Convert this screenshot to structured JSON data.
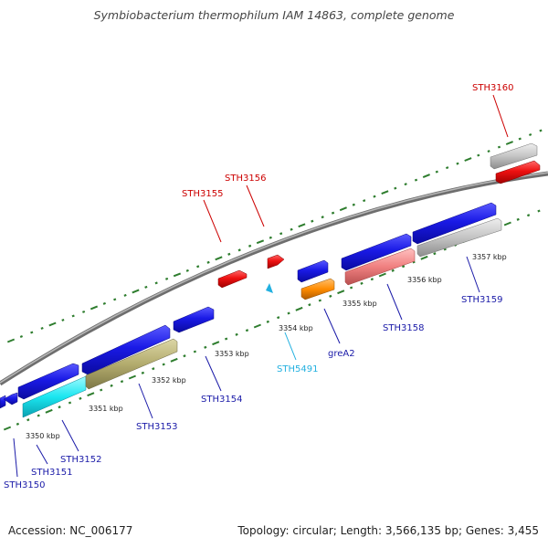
{
  "title": "Symbiobacterium thermophilum IAM 14863, complete genome",
  "footer": {
    "accession": "Accession: NC_006177",
    "summary": "Topology: circular; Length: 3,566,135 bp; Genes: 3,455"
  },
  "colors": {
    "backbone": "#8a8a8a",
    "tick_plus": "#2e7d2e",
    "tick_minus": "#2e7d2e",
    "gene_blue": "#1a1ae6",
    "gene_red": "#ee1111",
    "gene_gray": "#c4c4c4",
    "gene_salmon": "#f08080",
    "gene_cyan": "#1ae6f0",
    "gene_olive": "#b3ac6e",
    "gene_orange": "#ff8c00",
    "label_red": "#cc0000",
    "label_blue": "#1a1aa8",
    "label_cyan": "#22b0e0"
  },
  "scale_labels": [
    "3350 kbp",
    "3351 kbp",
    "3352 kbp",
    "3353 kbp",
    "3354 kbp",
    "3355 kbp",
    "3356 kbp",
    "3357 kbp"
  ],
  "genes": [
    {
      "id": "STH3150",
      "color": "gene_blue",
      "label_color": "label_blue"
    },
    {
      "id": "STH3151",
      "color": "gene_blue",
      "label_color": "label_blue"
    },
    {
      "id": "STH3152",
      "color": "gene_cyan",
      "label_color": "label_blue"
    },
    {
      "id": "STH3153",
      "color": "gene_olive",
      "label_color": "label_blue"
    },
    {
      "id": "STH3154",
      "color": "gene_blue",
      "label_color": "label_blue"
    },
    {
      "id": "STH3155",
      "color": "gene_red",
      "label_color": "label_red"
    },
    {
      "id": "STH3156",
      "color": "gene_red",
      "label_color": "label_red"
    },
    {
      "id": "STH5491",
      "color": "gene_cyan",
      "label_color": "label_cyan"
    },
    {
      "id": "greA2",
      "color": "gene_orange",
      "label_color": "label_blue"
    },
    {
      "id": "STH3158",
      "color": "gene_salmon",
      "label_color": "label_blue"
    },
    {
      "id": "STH3159",
      "color": "gene_gray",
      "label_color": "label_blue"
    },
    {
      "id": "STH3160",
      "color": "gene_red",
      "label_color": "label_red"
    }
  ]
}
